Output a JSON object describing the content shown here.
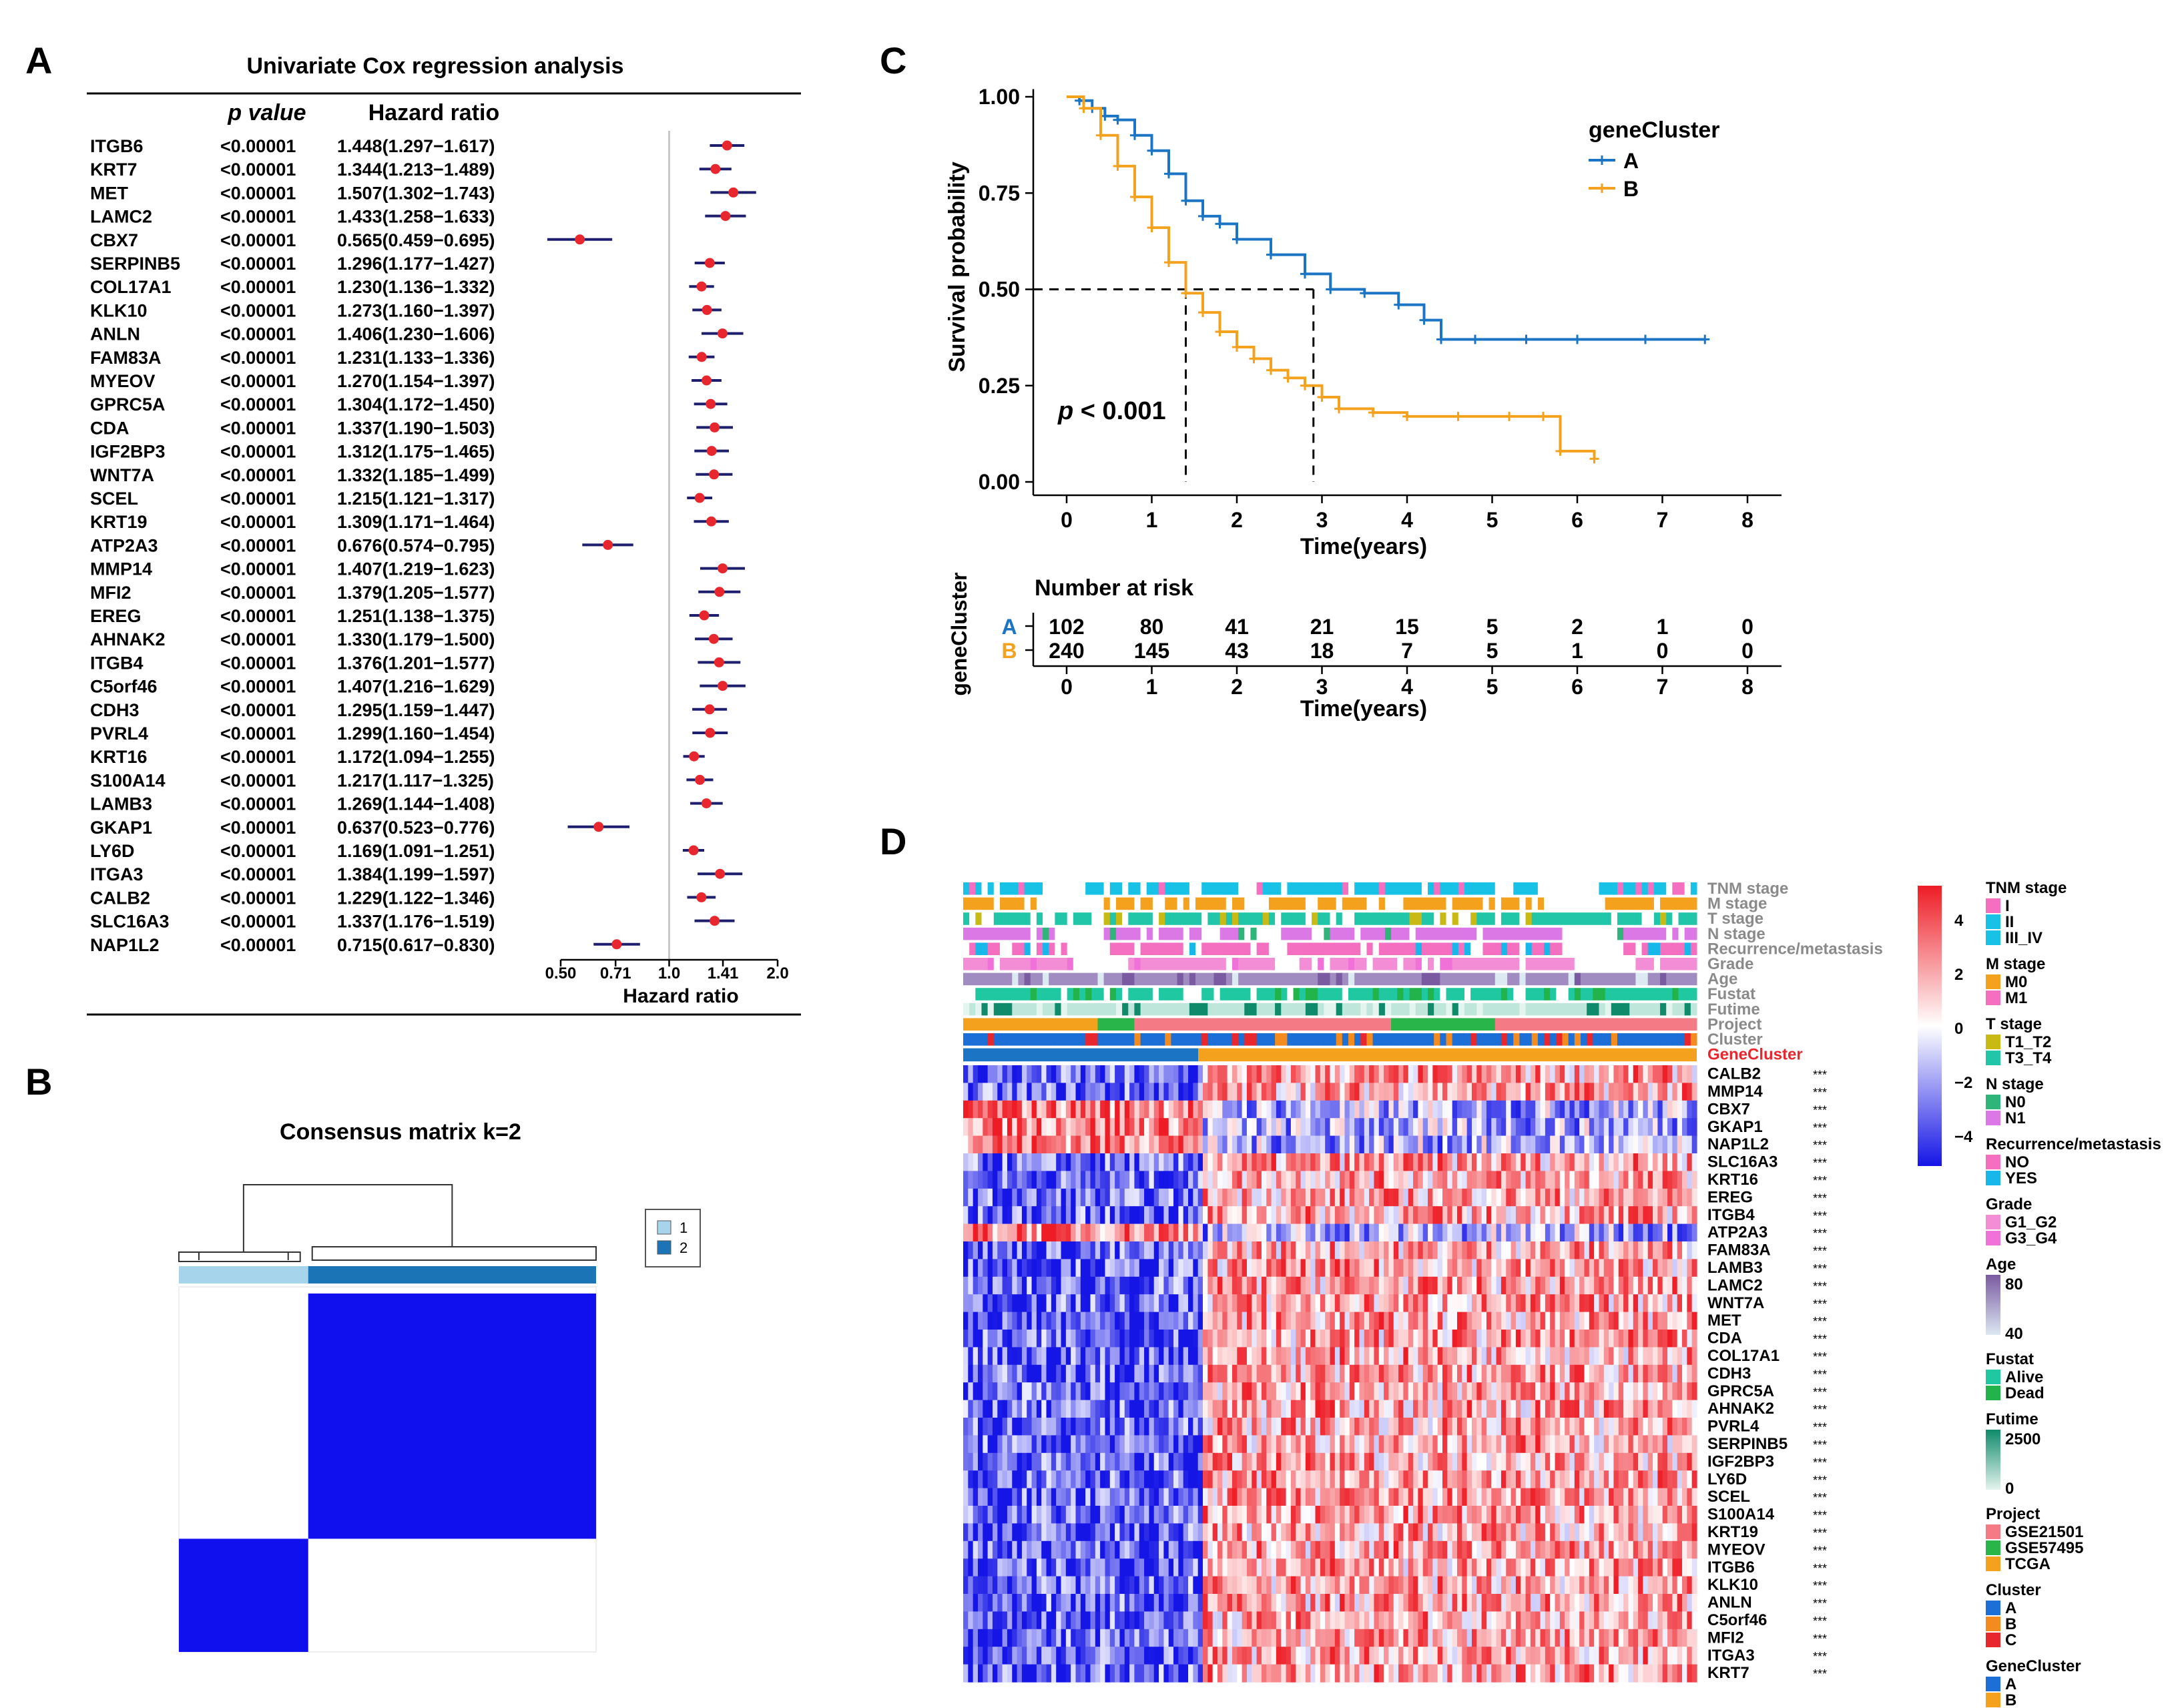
{
  "panels": {
    "A": "A",
    "B": "B",
    "C": "C",
    "D": "D"
  },
  "colors": {
    "pointRed": "#e8262d",
    "ciNavy": "#1d1e6e",
    "clusterA": "#1b74c4",
    "clusterB": "#f4a21d",
    "heatHigh": "#ee1c25",
    "heatLow": "#1515e6",
    "consensus": "#1010ee"
  },
  "chart_data": [
    {
      "id": "A",
      "type": "forest",
      "title": "Univariate Cox regression analysis",
      "col_p": "p value",
      "col_hr": "Hazard ratio",
      "xlabel": "Hazard ratio",
      "ticks": [
        "0.50",
        "0.71",
        "1.0",
        "1.41",
        "2.0"
      ],
      "tick_values": [
        0.5,
        0.71,
        1.0,
        1.41,
        2.0
      ],
      "rows": [
        {
          "gene": "ITGB6",
          "p": "<0.00001",
          "hr": 1.448,
          "lo": 1.297,
          "hi": 1.617,
          "text": "1.448(1.297−1.617)"
        },
        {
          "gene": "KRT7",
          "p": "<0.00001",
          "hr": 1.344,
          "lo": 1.213,
          "hi": 1.489,
          "text": "1.344(1.213−1.489)"
        },
        {
          "gene": "MET",
          "p": "<0.00001",
          "hr": 1.507,
          "lo": 1.302,
          "hi": 1.743,
          "text": "1.507(1.302−1.743)"
        },
        {
          "gene": "LAMC2",
          "p": "<0.00001",
          "hr": 1.433,
          "lo": 1.258,
          "hi": 1.633,
          "text": "1.433(1.258−1.633)"
        },
        {
          "gene": "CBX7",
          "p": "<0.00001",
          "hr": 0.565,
          "lo": 0.459,
          "hi": 0.695,
          "text": "0.565(0.459−0.695)"
        },
        {
          "gene": "SERPINB5",
          "p": "<0.00001",
          "hr": 1.296,
          "lo": 1.177,
          "hi": 1.427,
          "text": "1.296(1.177−1.427)"
        },
        {
          "gene": "COL17A1",
          "p": "<0.00001",
          "hr": 1.23,
          "lo": 1.136,
          "hi": 1.332,
          "text": "1.230(1.136−1.332)"
        },
        {
          "gene": "KLK10",
          "p": "<0.00001",
          "hr": 1.273,
          "lo": 1.16,
          "hi": 1.397,
          "text": "1.273(1.160−1.397)"
        },
        {
          "gene": "ANLN",
          "p": "<0.00001",
          "hr": 1.406,
          "lo": 1.23,
          "hi": 1.606,
          "text": "1.406(1.230−1.606)"
        },
        {
          "gene": "FAM83A",
          "p": "<0.00001",
          "hr": 1.231,
          "lo": 1.133,
          "hi": 1.336,
          "text": "1.231(1.133−1.336)"
        },
        {
          "gene": "MYEOV",
          "p": "<0.00001",
          "hr": 1.27,
          "lo": 1.154,
          "hi": 1.397,
          "text": "1.270(1.154−1.397)"
        },
        {
          "gene": "GPRC5A",
          "p": "<0.00001",
          "hr": 1.304,
          "lo": 1.172,
          "hi": 1.45,
          "text": "1.304(1.172−1.450)"
        },
        {
          "gene": "CDA",
          "p": "<0.00001",
          "hr": 1.337,
          "lo": 1.19,
          "hi": 1.503,
          "text": "1.337(1.190−1.503)"
        },
        {
          "gene": "IGF2BP3",
          "p": "<0.00001",
          "hr": 1.312,
          "lo": 1.175,
          "hi": 1.465,
          "text": "1.312(1.175−1.465)"
        },
        {
          "gene": "WNT7A",
          "p": "<0.00001",
          "hr": 1.332,
          "lo": 1.185,
          "hi": 1.499,
          "text": "1.332(1.185−1.499)"
        },
        {
          "gene": "SCEL",
          "p": "<0.00001",
          "hr": 1.215,
          "lo": 1.121,
          "hi": 1.317,
          "text": "1.215(1.121−1.317)"
        },
        {
          "gene": "KRT19",
          "p": "<0.00001",
          "hr": 1.309,
          "lo": 1.171,
          "hi": 1.464,
          "text": "1.309(1.171−1.464)"
        },
        {
          "gene": "ATP2A3",
          "p": "<0.00001",
          "hr": 0.676,
          "lo": 0.574,
          "hi": 0.795,
          "text": "0.676(0.574−0.795)"
        },
        {
          "gene": "MMP14",
          "p": "<0.00001",
          "hr": 1.407,
          "lo": 1.219,
          "hi": 1.623,
          "text": "1.407(1.219−1.623)"
        },
        {
          "gene": "MFI2",
          "p": "<0.00001",
          "hr": 1.379,
          "lo": 1.205,
          "hi": 1.577,
          "text": "1.379(1.205−1.577)"
        },
        {
          "gene": "EREG",
          "p": "<0.00001",
          "hr": 1.251,
          "lo": 1.138,
          "hi": 1.375,
          "text": "1.251(1.138−1.375)"
        },
        {
          "gene": "AHNAK2",
          "p": "<0.00001",
          "hr": 1.33,
          "lo": 1.179,
          "hi": 1.5,
          "text": "1.330(1.179−1.500)"
        },
        {
          "gene": "ITGB4",
          "p": "<0.00001",
          "hr": 1.376,
          "lo": 1.201,
          "hi": 1.577,
          "text": "1.376(1.201−1.577)"
        },
        {
          "gene": "C5orf46",
          "p": "<0.00001",
          "hr": 1.407,
          "lo": 1.216,
          "hi": 1.629,
          "text": "1.407(1.216−1.629)"
        },
        {
          "gene": "CDH3",
          "p": "<0.00001",
          "hr": 1.295,
          "lo": 1.159,
          "hi": 1.447,
          "text": "1.295(1.159−1.447)"
        },
        {
          "gene": "PVRL4",
          "p": "<0.00001",
          "hr": 1.299,
          "lo": 1.16,
          "hi": 1.454,
          "text": "1.299(1.160−1.454)"
        },
        {
          "gene": "KRT16",
          "p": "<0.00001",
          "hr": 1.172,
          "lo": 1.094,
          "hi": 1.255,
          "text": "1.172(1.094−1.255)"
        },
        {
          "gene": "S100A14",
          "p": "<0.00001",
          "hr": 1.217,
          "lo": 1.117,
          "hi": 1.325,
          "text": "1.217(1.117−1.325)"
        },
        {
          "gene": "LAMB3",
          "p": "<0.00001",
          "hr": 1.269,
          "lo": 1.144,
          "hi": 1.408,
          "text": "1.269(1.144−1.408)"
        },
        {
          "gene": "GKAP1",
          "p": "<0.00001",
          "hr": 0.637,
          "lo": 0.523,
          "hi": 0.776,
          "text": "0.637(0.523−0.776)"
        },
        {
          "gene": "LY6D",
          "p": "<0.00001",
          "hr": 1.169,
          "lo": 1.091,
          "hi": 1.251,
          "text": "1.169(1.091−1.251)"
        },
        {
          "gene": "ITGA3",
          "p": "<0.00001",
          "hr": 1.384,
          "lo": 1.199,
          "hi": 1.597,
          "text": "1.384(1.199−1.597)"
        },
        {
          "gene": "CALB2",
          "p": "<0.00001",
          "hr": 1.229,
          "lo": 1.122,
          "hi": 1.346,
          "text": "1.229(1.122−1.346)"
        },
        {
          "gene": "SLC16A3",
          "p": "<0.00001",
          "hr": 1.337,
          "lo": 1.176,
          "hi": 1.519,
          "text": "1.337(1.176−1.519)"
        },
        {
          "gene": "NAP1L2",
          "p": "<0.00001",
          "hr": 0.715,
          "lo": 0.617,
          "hi": 0.83,
          "text": "0.715(0.617−0.830)"
        }
      ]
    },
    {
      "id": "B",
      "type": "heatmap",
      "title": "Consensus matrix k=2",
      "legend": [
        {
          "label": "1",
          "color": "#a6d4ea"
        },
        {
          "label": "2",
          "color": "#1a74b5"
        }
      ],
      "cluster_fraction": [
        0.31,
        0.69
      ],
      "blocks": [
        {
          "cluster": "1",
          "value": 1
        },
        {
          "cluster": "2",
          "value": 1
        }
      ]
    },
    {
      "id": "C",
      "type": "line",
      "subtype": "kaplan-meier",
      "ylabel": "Survival probability",
      "xlabel": "Time(years)",
      "yticks": [
        "0.00",
        "0.25",
        "0.50",
        "0.75",
        "1.00"
      ],
      "xticks": [
        "0",
        "1",
        "2",
        "3",
        "4",
        "5",
        "6",
        "7",
        "8"
      ],
      "xlim": [
        0,
        8
      ],
      "ylim": [
        0,
        1
      ],
      "pvalue_prefix": "p",
      "pvalue_suffix": "< 0.001",
      "legend_title": "geneCluster",
      "series": [
        {
          "name": "A",
          "x": [
            0,
            0.15,
            0.3,
            0.45,
            0.6,
            0.8,
            1.0,
            1.2,
            1.4,
            1.6,
            1.8,
            2.0,
            2.4,
            2.8,
            3.1,
            3.5,
            3.9,
            4.2,
            4.4,
            4.8,
            5.4,
            6.0,
            6.8,
            7.5
          ],
          "y": [
            1.0,
            0.99,
            0.97,
            0.95,
            0.94,
            0.9,
            0.86,
            0.8,
            0.73,
            0.69,
            0.67,
            0.63,
            0.59,
            0.54,
            0.5,
            0.49,
            0.46,
            0.42,
            0.37,
            0.37,
            0.37,
            0.37,
            0.37,
            0.37
          ]
        },
        {
          "name": "B",
          "x": [
            0,
            0.2,
            0.4,
            0.6,
            0.8,
            1.0,
            1.2,
            1.4,
            1.6,
            1.8,
            2.0,
            2.2,
            2.4,
            2.6,
            2.8,
            3.0,
            3.2,
            3.6,
            4.0,
            4.6,
            5.2,
            5.6,
            5.8,
            6.2
          ],
          "y": [
            1.0,
            0.97,
            0.9,
            0.82,
            0.74,
            0.66,
            0.57,
            0.49,
            0.44,
            0.39,
            0.35,
            0.32,
            0.29,
            0.27,
            0.25,
            0.22,
            0.19,
            0.18,
            0.17,
            0.17,
            0.17,
            0.17,
            0.08,
            0.06
          ]
        }
      ],
      "medians": [
        1.4,
        2.9
      ],
      "risk_table": {
        "title": "Number at risk",
        "ylabel": "geneCluster",
        "xlabel": "Time(years)",
        "rows": [
          {
            "name": "A",
            "values": [
              "102",
              "80",
              "41",
              "21",
              "15",
              "5",
              "2",
              "1",
              "0"
            ]
          },
          {
            "name": "B",
            "values": [
              "240",
              "145",
              "43",
              "18",
              "7",
              "5",
              "1",
              "0",
              "0"
            ]
          }
        ]
      }
    },
    {
      "id": "D",
      "type": "heatmap",
      "annotation_labels": [
        "TNM stage",
        "M stage",
        "T stage",
        "N stage",
        "Recurrence/metastasis",
        "Grade",
        "Age",
        "Fustat",
        "Futime",
        "Project",
        "Cluster",
        "GeneCluster"
      ],
      "genes": [
        "CALB2",
        "MMP14",
        "CBX7",
        "GKAP1",
        "NAP1L2",
        "SLC16A3",
        "KRT16",
        "EREG",
        "ITGB4",
        "ATP2A3",
        "FAM83A",
        "LAMB3",
        "LAMC2",
        "WNT7A",
        "MET",
        "CDA",
        "COL17A1",
        "CDH3",
        "GPRC5A",
        "AHNAK2",
        "PVRL4",
        "SERPINB5",
        "IGF2BP3",
        "LY6D",
        "SCEL",
        "S100A14",
        "KRT19",
        "MYEOV",
        "ITGB6",
        "KLK10",
        "ANLN",
        "C5orf46",
        "MFI2",
        "ITGA3",
        "KRT7"
      ],
      "low_in_B": [
        "CBX7",
        "GKAP1",
        "NAP1L2",
        "ATP2A3"
      ],
      "significance": "***",
      "color_scale": {
        "ticks": [
          "4",
          "2",
          "0",
          "−2",
          "−4"
        ],
        "min": -4,
        "max": 4
      },
      "legends": [
        {
          "title": "TNM stage",
          "items": [
            {
              "label": "I",
              "color": "#f46fc0"
            },
            {
              "label": "II",
              "color": "#17c2e6"
            },
            {
              "label": "III_IV",
              "color": "#17c2e6"
            }
          ]
        },
        {
          "title": "M stage",
          "items": [
            {
              "label": "M0",
              "color": "#f4a21d"
            },
            {
              "label": "M1",
              "color": "#f46fc0"
            }
          ]
        },
        {
          "title": "T stage",
          "items": [
            {
              "label": "T1_T2",
              "color": "#c9b914"
            },
            {
              "label": "T3_T4",
              "color": "#21c6a8"
            }
          ]
        },
        {
          "title": "N stage",
          "items": [
            {
              "label": "N0",
              "color": "#2fb57a"
            },
            {
              "label": "N1",
              "color": "#dc78e6"
            }
          ]
        },
        {
          "title": "Recurrence/metastasis",
          "items": [
            {
              "label": "NO",
              "color": "#f46fc0"
            },
            {
              "label": "YES",
              "color": "#17b7ea"
            }
          ]
        },
        {
          "title": "Grade",
          "items": [
            {
              "label": "G1_G2",
              "color": "#f38ed6"
            },
            {
              "label": "G3_G4",
              "color": "#f072d8"
            }
          ]
        },
        {
          "title": "Age",
          "gradient": [
            "#7a5aa0",
            "#dce8f2"
          ],
          "ticks": [
            "80",
            "40"
          ]
        },
        {
          "title": "Fustat",
          "items": [
            {
              "label": "Alive",
              "color": "#1fc8a0"
            },
            {
              "label": "Dead",
              "color": "#22b34b"
            }
          ]
        },
        {
          "title": "Futime",
          "gradient": [
            "#0f8a6a",
            "#e4f4ee"
          ],
          "ticks": [
            "2500",
            "0"
          ]
        },
        {
          "title": "Project",
          "items": [
            {
              "label": "GSE21501",
              "color": "#f47b86"
            },
            {
              "label": "GSE57495",
              "color": "#2ab54b"
            },
            {
              "label": "TCGA",
              "color": "#f4a21d"
            }
          ]
        },
        {
          "title": "Cluster",
          "items": [
            {
              "label": "A",
              "color": "#1b6fd6"
            },
            {
              "label": "B",
              "color": "#f48b1f"
            },
            {
              "label": "C",
              "color": "#e8262d"
            }
          ]
        },
        {
          "title": "GeneCluster",
          "items": [
            {
              "label": "A",
              "color": "#1b6fd6"
            },
            {
              "label": "B",
              "color": "#f4a21d"
            }
          ]
        }
      ]
    }
  ]
}
